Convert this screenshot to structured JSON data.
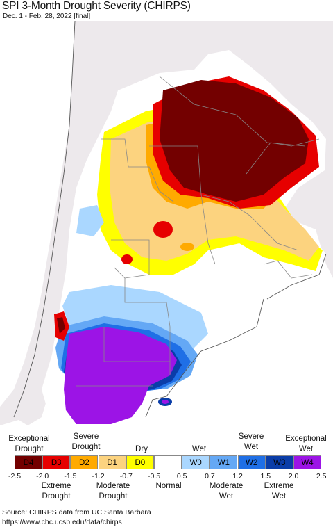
{
  "header": {
    "title": "SPI 3-Month Drought Severity (CHIRPS)",
    "subtitle": "Dec. 1 - Feb. 28, 2022 [final]"
  },
  "colors": {
    "ocean": "#ffffff",
    "outside_land": "#ede9ec",
    "normal": "#ffffff",
    "D4": "#730000",
    "D3": "#e60000",
    "D2": "#ffaa00",
    "D1": "#fcd37f",
    "D0": "#ffff00",
    "W0": "#aad7ff",
    "W1": "#64a8f5",
    "W2": "#1f6fe6",
    "W3": "#0a3da8",
    "W4": "#9c14e6"
  },
  "legend": {
    "top_labels": [
      {
        "text": "Exceptional\nDrought",
        "anchor": "exceptional-drought"
      },
      {
        "text": "Severe\nDrought",
        "anchor": "severe-drought"
      },
      {
        "text": "Dry",
        "anchor": "dry"
      },
      {
        "text": "Wet",
        "anchor": "wet"
      },
      {
        "text": "Severe\nWet",
        "anchor": "severe-wet"
      },
      {
        "text": "Exceptional\nWet",
        "anchor": "exceptional-wet"
      }
    ],
    "categories": [
      {
        "code": "D4",
        "color": "#730000",
        "text_color": "#000000"
      },
      {
        "code": "D3",
        "color": "#e60000",
        "text_color": "#000000"
      },
      {
        "code": "D2",
        "color": "#ffaa00",
        "text_color": "#000000"
      },
      {
        "code": "D1",
        "color": "#fcd37f",
        "text_color": "#000000"
      },
      {
        "code": "D0",
        "color": "#ffff00",
        "text_color": "#000000"
      },
      {
        "code": "",
        "color": "#ffffff",
        "text_color": "#000000"
      },
      {
        "code": "W0",
        "color": "#aad7ff",
        "text_color": "#000000"
      },
      {
        "code": "W1",
        "color": "#64a8f5",
        "text_color": "#000000"
      },
      {
        "code": "W2",
        "color": "#1f6fe6",
        "text_color": "#000000"
      },
      {
        "code": "W3",
        "color": "#0a3da8",
        "text_color": "#000000"
      },
      {
        "code": "W4",
        "color": "#9c14e6",
        "text_color": "#000000"
      }
    ],
    "ticks": [
      "-2.5",
      "-2.0",
      "-1.5",
      "-1.2",
      "-0.7",
      "-0.5",
      "0.5",
      "0.7",
      "1.2",
      "1.5",
      "2.0",
      "2.5"
    ],
    "bottom_labels": [
      {
        "text": "Extreme\nDrought",
        "anchor": "extreme-drought"
      },
      {
        "text": "Moderate\nDrought",
        "anchor": "moderate-drought"
      },
      {
        "text": "Normal",
        "anchor": "normal"
      },
      {
        "text": "Moderate\nWet",
        "anchor": "moderate-wet"
      },
      {
        "text": "Extreme\nWet",
        "anchor": "extreme-wet"
      }
    ]
  },
  "source": {
    "line1": "Source: CHIRPS data from UC Santa Barbara",
    "line2": "https://www.chc.ucsb.edu/data/chirps"
  }
}
